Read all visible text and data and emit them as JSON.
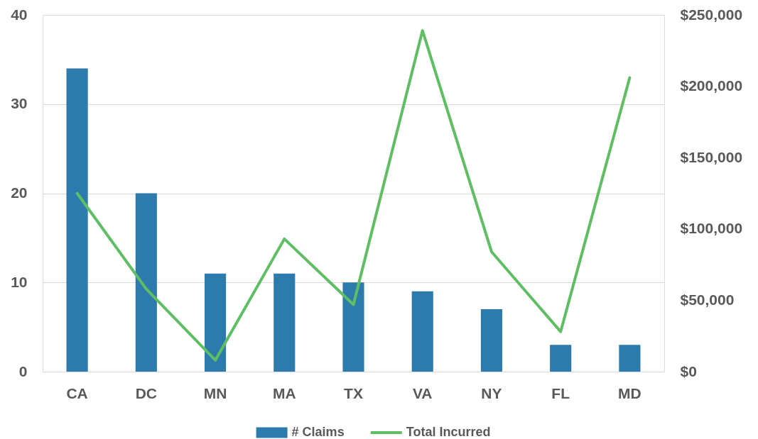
{
  "chart_data": {
    "type": "bar",
    "categories": [
      "CA",
      "DC",
      "MN",
      "MA",
      "TX",
      "VA",
      "NY",
      "FL",
      "MD"
    ],
    "series": [
      {
        "name": "# Claims",
        "color": "#2c7bac",
        "values": [
          34,
          20,
          11,
          11,
          10,
          9,
          7,
          3,
          3
        ]
      },
      {
        "name": "Total Incurred",
        "type": "line",
        "axis": "y2",
        "color": "#5fbe63",
        "values": [
          125000,
          58000,
          8000,
          93000,
          47000,
          239000,
          84000,
          28000,
          206000
        ]
      }
    ],
    "ylim": [
      0,
      40
    ],
    "yticks": [
      0,
      10,
      20,
      30,
      40
    ],
    "y2lim": [
      0,
      250000
    ],
    "y2ticks": [
      {
        "value": 0,
        "label": "$0"
      },
      {
        "value": 50000,
        "label": "$50,000"
      },
      {
        "value": 100000,
        "label": "$100,000"
      },
      {
        "value": 150000,
        "label": "$150,000"
      },
      {
        "value": 200000,
        "label": "$200,000"
      },
      {
        "value": 250000,
        "label": "$250,000"
      }
    ],
    "grid": "y",
    "legend": "bottom",
    "line_style": "solid"
  }
}
